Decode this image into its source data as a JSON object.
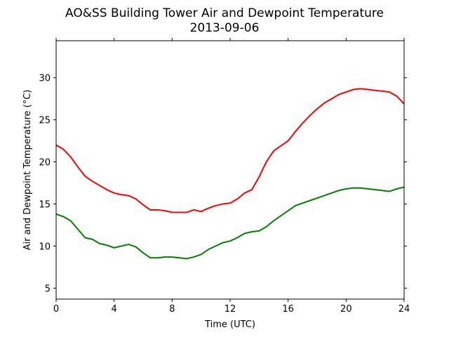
{
  "chart_data": {
    "type": "line",
    "title": "AO&SS Building Tower Air and Dewpoint Temperature",
    "subtitle": "2013-09-06",
    "xlabel": "Time (UTC)",
    "ylabel": "Air and Dewpoint Temperature (°C)",
    "xlim": [
      0,
      24
    ],
    "ylim": [
      3.7,
      34.4
    ],
    "xticks": [
      0,
      4,
      8,
      12,
      16,
      20,
      24
    ],
    "yticks": [
      5,
      10,
      15,
      20,
      25,
      30
    ],
    "grid": false,
    "legend": "none",
    "series": [
      {
        "color": "#ff0000",
        "x": [
          0,
          0.5,
          1,
          1.5,
          2,
          2.5,
          3,
          3.5,
          4,
          4.5,
          5,
          5.5,
          6,
          6.5,
          7,
          7.5,
          8,
          8.5,
          9,
          9.5,
          10,
          10.5,
          11,
          11.5,
          12,
          12.5,
          13,
          13.5,
          14,
          14.5,
          15,
          15.5,
          16,
          16.5,
          17,
          17.5,
          18,
          18.5,
          19,
          19.5,
          20,
          20.5,
          21,
          21.5,
          22,
          22.5,
          23,
          23.5,
          24
        ],
        "values": [
          22.0,
          21.5,
          20.6,
          19.4,
          18.3,
          17.7,
          17.2,
          16.7,
          16.3,
          16.1,
          16.0,
          15.6,
          14.9,
          14.3,
          14.3,
          14.2,
          14.0,
          14.0,
          14.0,
          14.3,
          14.1,
          14.5,
          14.8,
          15.0,
          15.1,
          15.6,
          16.3,
          16.7,
          18.2,
          20.0,
          21.3,
          21.9,
          22.5,
          23.6,
          24.6,
          25.5,
          26.3,
          27.0,
          27.5,
          28.0,
          28.3,
          28.6,
          28.7,
          28.6,
          28.5,
          28.4,
          28.3,
          27.8,
          26.9
        ]
      },
      {
        "color": "#008000",
        "x": [
          0,
          0.5,
          1,
          1.5,
          2,
          2.5,
          3,
          3.5,
          4,
          4.5,
          5,
          5.5,
          6,
          6.5,
          7,
          7.5,
          8,
          8.5,
          9,
          9.5,
          10,
          10.5,
          11,
          11.5,
          12,
          12.5,
          13,
          13.5,
          14,
          14.5,
          15,
          15.5,
          16,
          16.5,
          17,
          17.5,
          18,
          18.5,
          19,
          19.5,
          20,
          20.5,
          21,
          21.5,
          22,
          22.5,
          23,
          23.5,
          24
        ],
        "values": [
          13.8,
          13.5,
          13.0,
          12.0,
          11.0,
          10.8,
          10.3,
          10.1,
          9.8,
          10.0,
          10.2,
          9.9,
          9.2,
          8.6,
          8.6,
          8.7,
          8.7,
          8.6,
          8.5,
          8.7,
          9.0,
          9.6,
          10.0,
          10.4,
          10.6,
          11.0,
          11.5,
          11.7,
          11.8,
          12.3,
          13.0,
          13.6,
          14.2,
          14.8,
          15.1,
          15.4,
          15.7,
          16.0,
          16.3,
          16.6,
          16.8,
          16.9,
          16.9,
          16.8,
          16.7,
          16.6,
          16.5,
          16.8,
          17.0
        ]
      }
    ]
  }
}
